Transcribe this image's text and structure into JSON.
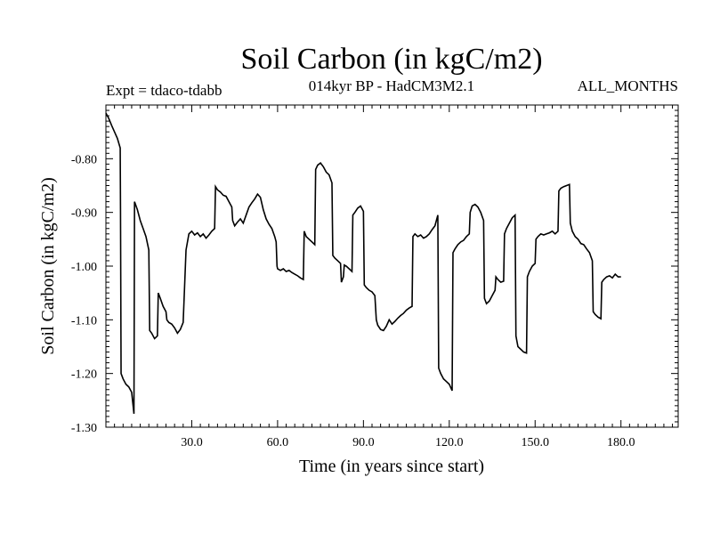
{
  "chart_data": {
    "type": "line",
    "title": "Soil Carbon (in kgC/m2)",
    "subtitle_left": "Expt = tdaco-tdabb",
    "subtitle_center": "014kyr BP - HadCM3M2.1",
    "subtitle_right": "ALL_MONTHS",
    "xlabel": "Time (in years since start)",
    "ylabel": "Soil Carbon (in kgC/m2)",
    "xlim": [
      0,
      200
    ],
    "ylim": [
      -1.3,
      -0.7
    ],
    "xticks": [
      30,
      60,
      90,
      120,
      150,
      180
    ],
    "xtick_labels": [
      "30.0",
      "60.0",
      "90.0",
      "120.0",
      "150.0",
      "180.0"
    ],
    "yticks": [
      -1.3,
      -1.2,
      -1.1,
      -1.0,
      -0.9,
      -0.8
    ],
    "ytick_labels": [
      "-1.30",
      "-1.20",
      "-1.10",
      "-1.00",
      "-0.90",
      "-0.80"
    ],
    "grid": false,
    "series": [
      {
        "name": "tdaco-tdabb",
        "color": "#000000",
        "points": [
          [
            0,
            -0.715
          ],
          [
            1,
            -0.725
          ],
          [
            2,
            -0.738
          ],
          [
            3,
            -0.75
          ],
          [
            4,
            -0.762
          ],
          [
            5,
            -0.78
          ],
          [
            5.1,
            -0.895
          ],
          [
            5.3,
            -1.2
          ],
          [
            6,
            -1.21
          ],
          [
            7,
            -1.22
          ],
          [
            8,
            -1.225
          ],
          [
            9,
            -1.235
          ],
          [
            9.8,
            -1.275
          ],
          [
            10,
            -0.88
          ],
          [
            11,
            -0.895
          ],
          [
            12,
            -0.915
          ],
          [
            13,
            -0.93
          ],
          [
            14,
            -0.945
          ],
          [
            15,
            -0.97
          ],
          [
            15.3,
            -1.12
          ],
          [
            16,
            -1.125
          ],
          [
            17,
            -1.135
          ],
          [
            18,
            -1.13
          ],
          [
            18.3,
            -1.05
          ],
          [
            19,
            -1.06
          ],
          [
            20,
            -1.075
          ],
          [
            21,
            -1.085
          ],
          [
            21.3,
            -1.1
          ],
          [
            22,
            -1.105
          ],
          [
            23,
            -1.108
          ],
          [
            24,
            -1.115
          ],
          [
            25,
            -1.125
          ],
          [
            26,
            -1.118
          ],
          [
            27,
            -1.105
          ],
          [
            28,
            -0.97
          ],
          [
            29,
            -0.94
          ],
          [
            30,
            -0.935
          ],
          [
            31,
            -0.942
          ],
          [
            32,
            -0.938
          ],
          [
            33,
            -0.945
          ],
          [
            34,
            -0.94
          ],
          [
            35,
            -0.948
          ],
          [
            36,
            -0.942
          ],
          [
            37,
            -0.935
          ],
          [
            38,
            -0.93
          ],
          [
            38.3,
            -0.852
          ],
          [
            39,
            -0.858
          ],
          [
            40,
            -0.862
          ],
          [
            41,
            -0.868
          ],
          [
            42,
            -0.87
          ],
          [
            43,
            -0.88
          ],
          [
            44,
            -0.89
          ],
          [
            44.3,
            -0.915
          ],
          [
            45,
            -0.925
          ],
          [
            46,
            -0.918
          ],
          [
            47,
            -0.912
          ],
          [
            48,
            -0.92
          ],
          [
            49,
            -0.905
          ],
          [
            50,
            -0.89
          ],
          [
            51,
            -0.882
          ],
          [
            52,
            -0.875
          ],
          [
            53,
            -0.866
          ],
          [
            54,
            -0.872
          ],
          [
            55,
            -0.895
          ],
          [
            56,
            -0.912
          ],
          [
            57,
            -0.922
          ],
          [
            58,
            -0.93
          ],
          [
            59,
            -0.945
          ],
          [
            59.5,
            -0.955
          ],
          [
            59.8,
            -1.0
          ],
          [
            60,
            -1.005
          ],
          [
            61,
            -1.008
          ],
          [
            62,
            -1.005
          ],
          [
            63,
            -1.01
          ],
          [
            64,
            -1.008
          ],
          [
            65,
            -1.012
          ],
          [
            66,
            -1.015
          ],
          [
            67,
            -1.018
          ],
          [
            68,
            -1.022
          ],
          [
            69,
            -1.025
          ],
          [
            69.3,
            -0.935
          ],
          [
            70,
            -0.945
          ],
          [
            71,
            -0.95
          ],
          [
            72,
            -0.955
          ],
          [
            73,
            -0.96
          ],
          [
            73.3,
            -0.82
          ],
          [
            74,
            -0.812
          ],
          [
            75,
            -0.808
          ],
          [
            76,
            -0.815
          ],
          [
            77,
            -0.825
          ],
          [
            78,
            -0.83
          ],
          [
            79,
            -0.845
          ],
          [
            79.3,
            -0.98
          ],
          [
            80,
            -0.985
          ],
          [
            81,
            -0.99
          ],
          [
            82,
            -0.995
          ],
          [
            82.3,
            -1.03
          ],
          [
            83,
            -1.02
          ],
          [
            83.3,
            -0.998
          ],
          [
            84,
            -1.0
          ],
          [
            85,
            -1.005
          ],
          [
            86,
            -1.01
          ],
          [
            86.3,
            -0.905
          ],
          [
            87,
            -0.9
          ],
          [
            88,
            -0.892
          ],
          [
            89,
            -0.888
          ],
          [
            90,
            -0.898
          ],
          [
            90.3,
            -1.035
          ],
          [
            91,
            -1.04
          ],
          [
            92,
            -1.045
          ],
          [
            93,
            -1.048
          ],
          [
            94,
            -1.055
          ],
          [
            94.5,
            -1.1
          ],
          [
            95,
            -1.11
          ],
          [
            96,
            -1.118
          ],
          [
            97,
            -1.12
          ],
          [
            98,
            -1.112
          ],
          [
            99,
            -1.1
          ],
          [
            100,
            -1.108
          ],
          [
            101,
            -1.103
          ],
          [
            102,
            -1.097
          ],
          [
            103,
            -1.092
          ],
          [
            104,
            -1.088
          ],
          [
            105,
            -1.082
          ],
          [
            106,
            -1.078
          ],
          [
            107,
            -1.075
          ],
          [
            107.3,
            -0.945
          ],
          [
            108,
            -0.94
          ],
          [
            109,
            -0.945
          ],
          [
            110,
            -0.942
          ],
          [
            111,
            -0.948
          ],
          [
            112,
            -0.945
          ],
          [
            113,
            -0.94
          ],
          [
            114,
            -0.932
          ],
          [
            115,
            -0.925
          ],
          [
            116,
            -0.905
          ],
          [
            116.3,
            -1.19
          ],
          [
            117,
            -1.2
          ],
          [
            118,
            -1.21
          ],
          [
            119,
            -1.215
          ],
          [
            120,
            -1.22
          ],
          [
            121,
            -1.232
          ],
          [
            121.3,
            -0.975
          ],
          [
            122,
            -0.968
          ],
          [
            123,
            -0.96
          ],
          [
            124,
            -0.955
          ],
          [
            125,
            -0.952
          ],
          [
            126,
            -0.945
          ],
          [
            127,
            -0.94
          ],
          [
            127.3,
            -0.9
          ],
          [
            128,
            -0.888
          ],
          [
            129,
            -0.885
          ],
          [
            130,
            -0.89
          ],
          [
            131,
            -0.9
          ],
          [
            132,
            -0.915
          ],
          [
            132.3,
            -1.06
          ],
          [
            133,
            -1.07
          ],
          [
            134,
            -1.065
          ],
          [
            135,
            -1.055
          ],
          [
            136,
            -1.045
          ],
          [
            136.3,
            -1.02
          ],
          [
            137,
            -1.025
          ],
          [
            138,
            -1.03
          ],
          [
            139,
            -1.028
          ],
          [
            139.3,
            -0.94
          ],
          [
            140,
            -0.93
          ],
          [
            141,
            -0.92
          ],
          [
            142,
            -0.91
          ],
          [
            143,
            -0.905
          ],
          [
            143.3,
            -1.13
          ],
          [
            144,
            -1.15
          ],
          [
            145,
            -1.155
          ],
          [
            146,
            -1.16
          ],
          [
            147,
            -1.162
          ],
          [
            147.3,
            -1.02
          ],
          [
            148,
            -1.01
          ],
          [
            149,
            -1.0
          ],
          [
            150,
            -0.995
          ],
          [
            150.3,
            -0.95
          ],
          [
            151,
            -0.945
          ],
          [
            152,
            -0.94
          ],
          [
            153,
            -0.942
          ],
          [
            154,
            -0.94
          ],
          [
            155,
            -0.938
          ],
          [
            156,
            -0.935
          ],
          [
            157,
            -0.94
          ],
          [
            158,
            -0.935
          ],
          [
            158.3,
            -0.86
          ],
          [
            159,
            -0.855
          ],
          [
            160,
            -0.852
          ],
          [
            161,
            -0.85
          ],
          [
            162,
            -0.848
          ],
          [
            162.3,
            -0.92
          ],
          [
            163,
            -0.935
          ],
          [
            164,
            -0.945
          ],
          [
            165,
            -0.95
          ],
          [
            166,
            -0.958
          ],
          [
            167,
            -0.96
          ],
          [
            168,
            -0.968
          ],
          [
            169,
            -0.975
          ],
          [
            170,
            -0.99
          ],
          [
            170.3,
            -1.085
          ],
          [
            171,
            -1.09
          ],
          [
            172,
            -1.095
          ],
          [
            173,
            -1.098
          ],
          [
            173.3,
            -1.03
          ],
          [
            174,
            -1.025
          ],
          [
            175,
            -1.02
          ],
          [
            176,
            -1.018
          ],
          [
            177,
            -1.022
          ],
          [
            178,
            -1.015
          ],
          [
            179,
            -1.02
          ],
          [
            180,
            -1.02
          ]
        ]
      }
    ]
  }
}
